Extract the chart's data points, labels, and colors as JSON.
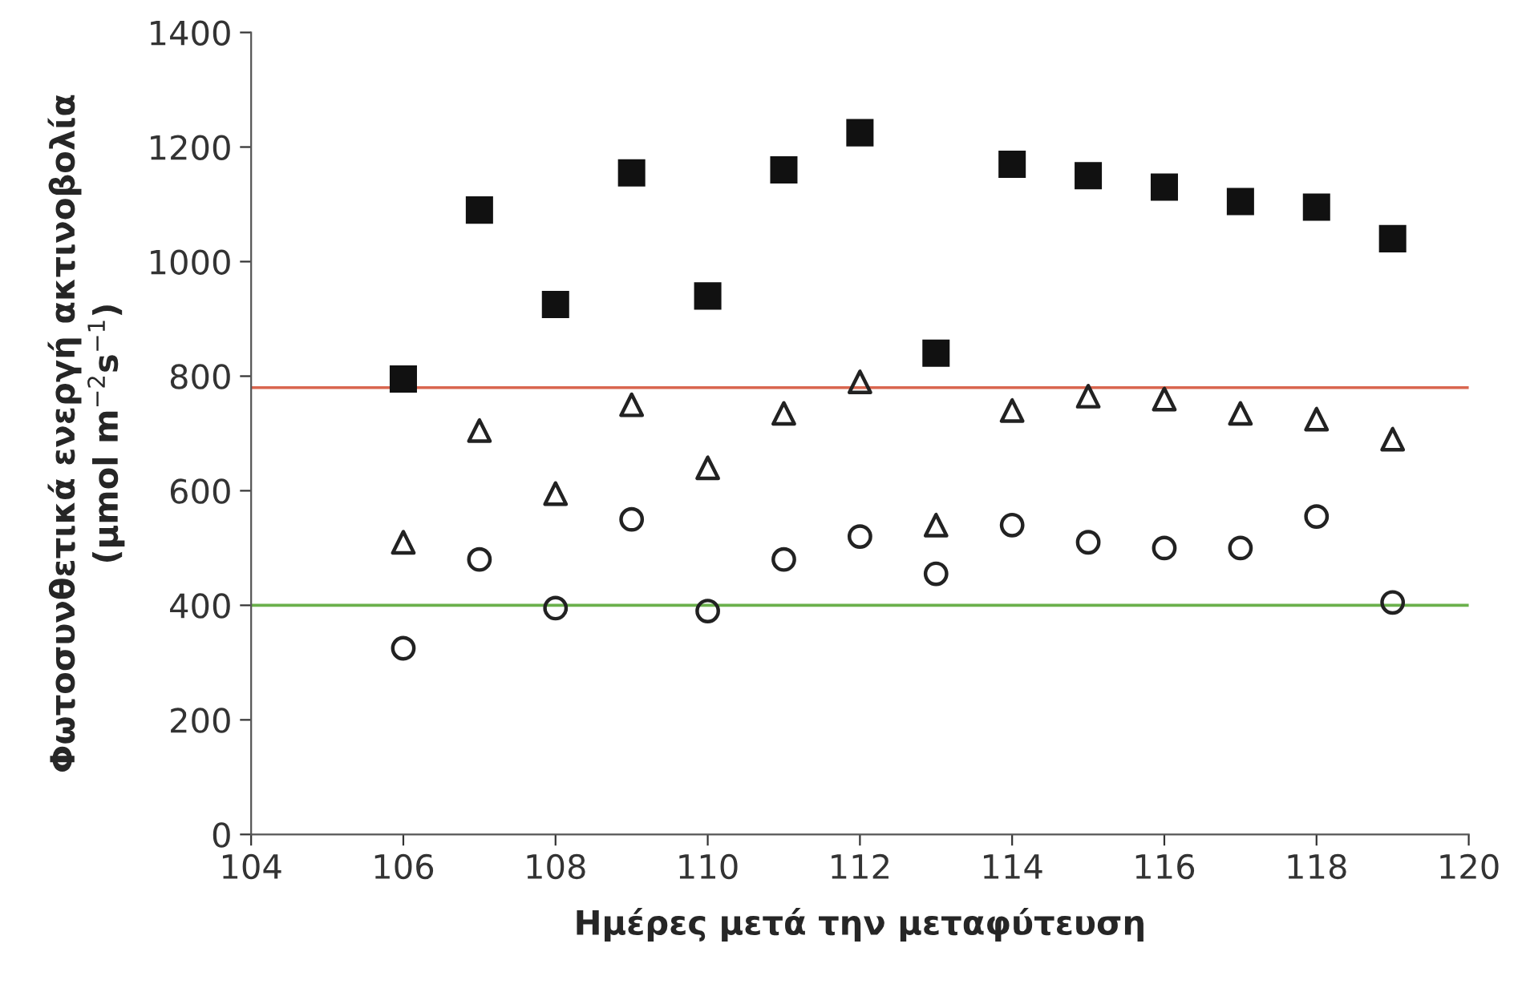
{
  "chart_data": {
    "type": "scatter",
    "xlabel": "Ημέρες μετά την μεταφύτευση",
    "ylabel": "Φωτοσυνθετικά ενεργή ακτινοβολία\n(μmol m$^{−2}$s$^{−1}$)",
    "x": [
      106,
      107,
      108,
      109,
      110,
      111,
      112,
      113,
      114,
      115,
      116,
      117,
      118,
      119
    ],
    "series": [
      {
        "color": "#111111",
        "marker": "square",
        "values": [
          795,
          1090,
          925,
          1155,
          940,
          1160,
          1225,
          840,
          1170,
          1150,
          1130,
          1105,
          1095,
          1040
        ]
      },
      {
        "color": "#222222",
        "marker": "triangle",
        "values": [
          510,
          705,
          595,
          750,
          640,
          735,
          790,
          540,
          740,
          765,
          760,
          735,
          725,
          690
        ]
      },
      {
        "color": "#222222",
        "marker": "circle",
        "values": [
          325,
          480,
          395,
          550,
          390,
          480,
          520,
          455,
          540,
          510,
          500,
          500,
          555,
          405
        ]
      }
    ],
    "ref_lines": [
      {
        "axis": "y",
        "value": 780,
        "color": "#d9664f"
      },
      {
        "axis": "y",
        "value": 400,
        "color": "#6ab04c"
      }
    ],
    "xlim": [
      104,
      120
    ],
    "xticks": [
      104,
      106,
      108,
      110,
      112,
      114,
      116,
      118,
      120
    ],
    "ylim": [
      0,
      1400
    ],
    "yticks": [
      0,
      200,
      400,
      600,
      800,
      1000,
      1200,
      1400
    ],
    "grid": false,
    "legend": false
  }
}
